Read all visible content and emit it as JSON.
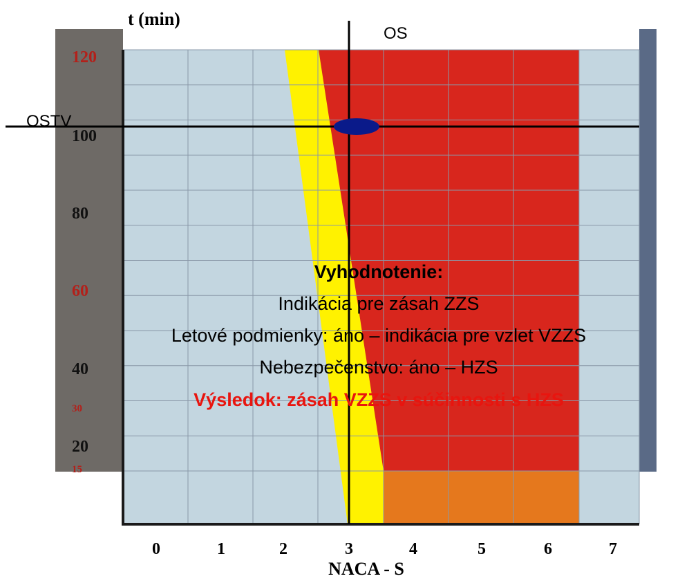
{
  "axes": {
    "y_title": "t (min)",
    "x_title": "NACA - S",
    "x_ticks": [
      0,
      1,
      2,
      3,
      4,
      5,
      6,
      7
    ],
    "y_ticks": [
      120,
      100,
      80,
      60,
      40,
      30,
      20,
      15
    ]
  },
  "markers": {
    "vertical": "OS",
    "horizontal": "OSTV"
  },
  "evaluation": {
    "heading": "Vyhodnotenie:",
    "lines": [
      "Indikácia pre zásah ZZS",
      "Letové podmienky: áno – indikácia pre vzlet VZZS",
      "Nebezpečenstvo: áno – HZS"
    ],
    "result": "Výsledok: zásah VZZS v súčinnosti s HZS"
  }
}
